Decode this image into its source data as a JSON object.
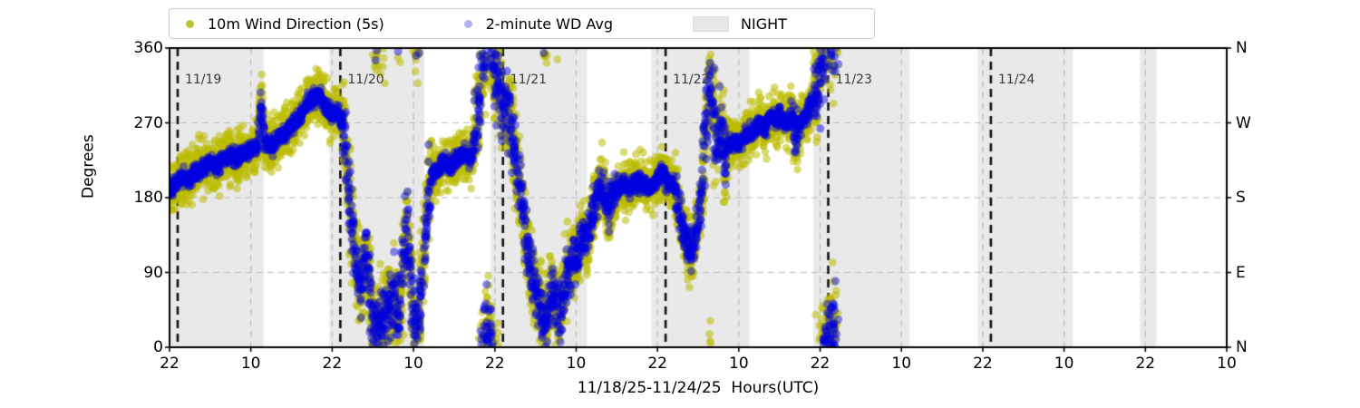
{
  "legend": {
    "items": [
      {
        "label": "10m Wind Direction (5s)",
        "marker": "dot",
        "marker_color": "#c3c32a"
      },
      {
        "label": "2-minute WD Avg",
        "marker": "dot",
        "marker_color": "#b0b4ee"
      },
      {
        "label": "NIGHT",
        "marker": "patch",
        "marker_color": "#e7e7e7"
      }
    ]
  },
  "chart_data": {
    "type": "scatter",
    "title": "",
    "xlabel": "11/18/25-11/24/25  Hours(UTC)",
    "ylabel": "Degrees",
    "ylim": [
      0,
      360
    ],
    "grid": true,
    "y_ticks": [
      0,
      90,
      180,
      270,
      360
    ],
    "y_ticks_right_compass": [
      "N",
      "E",
      "S",
      "W",
      "N"
    ],
    "x_axis": {
      "start": "11/18/25 22:00 UTC",
      "end": "11/25/25 10:00 UTC",
      "span_hours": 156,
      "tick_every_hours": 12,
      "tick_labels": [
        "22",
        "10",
        "22",
        "10",
        "22",
        "10",
        "22",
        "10",
        "22",
        "10",
        "22",
        "10",
        "22",
        "10"
      ]
    },
    "date_lines": [
      {
        "label": "11/19",
        "hour": 1.2
      },
      {
        "label": "11/20",
        "hour": 25.2
      },
      {
        "label": "11/21",
        "hour": 49.2
      },
      {
        "label": "11/22",
        "hour": 73.2
      },
      {
        "label": "11/23",
        "hour": 97.2
      },
      {
        "label": "11/24",
        "hour": 121.2
      }
    ],
    "night_spans_hours": [
      [
        0,
        13.9
      ],
      [
        23.6,
        37.6
      ],
      [
        47.4,
        61.6
      ],
      [
        71.1,
        85.6
      ],
      [
        95.0,
        109.2
      ],
      [
        119.3,
        133.3
      ],
      [
        143.2,
        145.6
      ]
    ],
    "night_color": "#e9e9e9",
    "series": [
      {
        "name": "10m Wind Direction (5s)",
        "color": "#bbbb00",
        "alpha": 0.55,
        "radius": 4.3,
        "base_spread_deg": 30,
        "step_hours": 0.04,
        "passes": 2
      },
      {
        "name": "2-minute WD Avg",
        "color": "#0000e0",
        "alpha": 0.45,
        "radius": 4.6,
        "base_spread_deg": 10,
        "step_hours": 0.033,
        "passes": 1
      }
    ],
    "data_end_hour": 98.5,
    "avg_keypoints_hour_deg": [
      [
        0,
        185
      ],
      [
        1,
        198
      ],
      [
        2,
        205
      ],
      [
        3,
        200
      ],
      [
        4,
        212
      ],
      [
        5,
        216
      ],
      [
        6,
        222
      ],
      [
        7,
        218
      ],
      [
        8,
        226
      ],
      [
        9,
        231
      ],
      [
        10,
        228
      ],
      [
        11,
        233
      ],
      [
        12,
        237
      ],
      [
        13,
        242
      ],
      [
        13.5,
        293
      ],
      [
        14,
        246
      ],
      [
        15,
        241
      ],
      [
        16,
        252
      ],
      [
        17,
        257
      ],
      [
        18,
        266
      ],
      [
        19,
        276
      ],
      [
        20,
        288
      ],
      [
        21,
        300
      ],
      [
        22,
        305
      ],
      [
        22.7,
        293
      ],
      [
        23.3,
        284
      ],
      [
        24,
        279
      ],
      [
        24.7,
        283
      ],
      [
        25.3,
        276
      ],
      [
        25.8,
        252
      ],
      [
        26.2,
        215
      ],
      [
        26.6,
        170
      ],
      [
        27,
        140
      ],
      [
        27.4,
        115
      ],
      [
        27.8,
        95
      ],
      [
        28.2,
        60
      ],
      [
        28.6,
        95
      ],
      [
        29,
        120
      ],
      [
        29.4,
        85
      ],
      [
        29.8,
        45
      ],
      [
        30.2,
        30
      ],
      [
        30.6,
        22
      ],
      [
        31,
        38
      ],
      [
        31.4,
        25
      ],
      [
        31.8,
        42
      ],
      [
        32.2,
        60
      ],
      [
        32.6,
        32
      ],
      [
        33,
        75
      ],
      [
        33.4,
        45
      ],
      [
        33.8,
        28
      ],
      [
        34.2,
        65
      ],
      [
        34.6,
        120
      ],
      [
        35,
        155
      ],
      [
        35.4,
        110
      ],
      [
        35.8,
        60
      ],
      [
        36.2,
        30
      ],
      [
        36.6,
        22
      ],
      [
        37,
        55
      ],
      [
        37.4,
        100
      ],
      [
        37.8,
        150
      ],
      [
        38.2,
        185
      ],
      [
        38.6,
        205
      ],
      [
        39.5,
        212
      ],
      [
        40.5,
        222
      ],
      [
        41.5,
        218
      ],
      [
        42.5,
        228
      ],
      [
        43.5,
        232
      ],
      [
        44.5,
        224
      ],
      [
        45.2,
        262
      ],
      [
        45.7,
        300
      ],
      [
        46.1,
        335
      ],
      [
        46.5,
        358
      ],
      [
        46.9,
        390
      ],
      [
        47.3,
        372
      ],
      [
        47.7,
        345
      ],
      [
        48.1,
        315
      ],
      [
        48.5,
        330
      ],
      [
        48.9,
        305
      ],
      [
        49.3,
        285
      ],
      [
        49.7,
        300
      ],
      [
        50.1,
        278
      ],
      [
        50.5,
        262
      ],
      [
        51,
        228
      ],
      [
        51.5,
        196
      ],
      [
        52,
        172
      ],
      [
        52.5,
        135
      ],
      [
        53,
        105
      ],
      [
        53.5,
        85
      ],
      [
        54,
        72
      ],
      [
        54.5,
        62
      ],
      [
        55,
        42
      ],
      [
        55.5,
        22
      ],
      [
        56,
        48
      ],
      [
        56.5,
        72
      ],
      [
        57,
        58
      ],
      [
        57.5,
        32
      ],
      [
        58,
        58
      ],
      [
        58.5,
        82
      ],
      [
        59,
        96
      ],
      [
        59.5,
        112
      ],
      [
        60,
        102
      ],
      [
        60.5,
        122
      ],
      [
        61,
        138
      ],
      [
        61.5,
        122
      ],
      [
        62,
        142
      ],
      [
        62.5,
        162
      ],
      [
        63,
        178
      ],
      [
        63.5,
        192
      ],
      [
        64,
        182
      ],
      [
        64.5,
        162
      ],
      [
        65,
        172
      ],
      [
        66,
        186
      ],
      [
        67,
        196
      ],
      [
        68,
        190
      ],
      [
        69,
        201
      ],
      [
        70,
        196
      ],
      [
        71,
        191
      ],
      [
        72,
        201
      ],
      [
        72.5,
        211
      ],
      [
        73,
        206
      ],
      [
        73.5,
        196
      ],
      [
        74,
        201
      ],
      [
        74.5,
        191
      ],
      [
        75,
        172
      ],
      [
        75.5,
        152
      ],
      [
        76,
        136
      ],
      [
        76.5,
        121
      ],
      [
        77,
        116
      ],
      [
        77.5,
        131
      ],
      [
        78,
        152
      ],
      [
        78.5,
        182
      ],
      [
        79,
        242
      ],
      [
        79.5,
        302
      ],
      [
        79.8,
        330
      ],
      [
        80.2,
        285
      ],
      [
        80.6,
        235
      ],
      [
        81,
        252
      ],
      [
        81.4,
        272
      ],
      [
        81.8,
        238
      ],
      [
        82.2,
        226
      ],
      [
        82.6,
        251
      ],
      [
        83,
        241
      ],
      [
        83.6,
        251
      ],
      [
        84.2,
        243
      ],
      [
        84.8,
        252
      ],
      [
        85.4,
        261
      ],
      [
        86,
        256
      ],
      [
        86.6,
        266
      ],
      [
        87.2,
        271
      ],
      [
        87.8,
        261
      ],
      [
        88.4,
        272
      ],
      [
        89,
        279
      ],
      [
        89.6,
        271
      ],
      [
        90.2,
        281
      ],
      [
        90.8,
        266
      ],
      [
        91.4,
        272
      ],
      [
        92,
        279
      ],
      [
        92.3,
        242
      ],
      [
        92.6,
        257
      ],
      [
        93,
        266
      ],
      [
        93.5,
        276
      ],
      [
        94,
        281
      ],
      [
        94.5,
        291
      ],
      [
        95,
        301
      ],
      [
        95.5,
        316
      ],
      [
        96,
        332
      ],
      [
        96.3,
        352
      ],
      [
        96.6,
        368
      ],
      [
        96.9,
        378
      ],
      [
        97.1,
        362
      ],
      [
        97.3,
        385
      ],
      [
        97.5,
        368
      ],
      [
        97.7,
        352
      ],
      [
        97.9,
        378
      ],
      [
        98.1,
        392
      ],
      [
        98.3,
        372
      ],
      [
        98.5,
        385
      ]
    ],
    "volatile_windows": [
      [
        13.1,
        13.9,
        1.2,
        1.5
      ],
      [
        25.5,
        38.6,
        1.8,
        3.5
      ],
      [
        45.2,
        50.6,
        1.9,
        4.5
      ],
      [
        50.6,
        59.2,
        1.6,
        3.2
      ],
      [
        59.2,
        66,
        1.4,
        2.4
      ],
      [
        74.5,
        78.6,
        1.3,
        2.2
      ],
      [
        78.6,
        82.4,
        1.8,
        4.0
      ],
      [
        91.9,
        92.7,
        1.4,
        2.4
      ],
      [
        95.2,
        98.5,
        1.9,
        5.0
      ]
    ],
    "grid_color": "#bbbbbb",
    "date_line_color": "#111111"
  }
}
